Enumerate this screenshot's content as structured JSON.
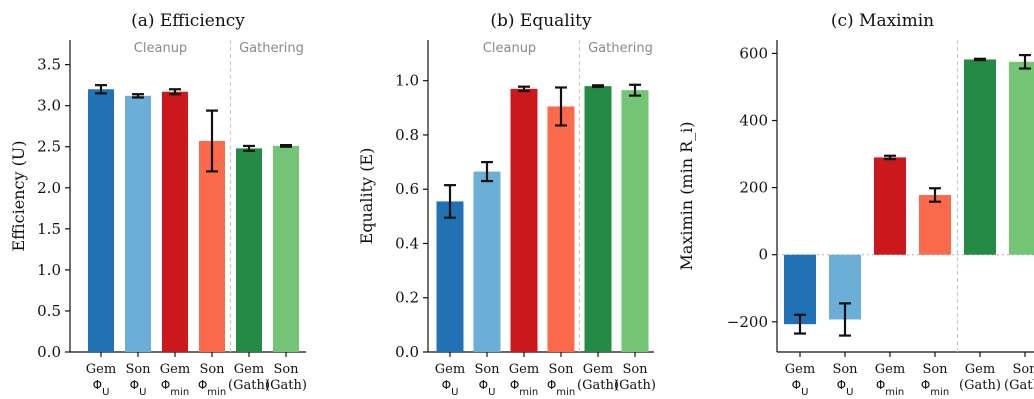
{
  "chart_data": [
    {
      "type": "bar",
      "title": "(a) Efficiency",
      "ylabel": "Efficiency (U)",
      "ylim": [
        0,
        3.8
      ],
      "yticks": [
        "0.0",
        "0.5",
        "1.0",
        "1.5",
        "2.0",
        "2.5",
        "3.0",
        "3.5"
      ],
      "group_labels": [
        "Cleanup",
        "Gathering"
      ],
      "categories": [
        {
          "top": "Gem",
          "sub": "Φ_U"
        },
        {
          "top": "Son",
          "sub": "Φ_U"
        },
        {
          "top": "Gem",
          "sub": "Φ_min"
        },
        {
          "top": "Son",
          "sub": "Φ_min"
        },
        {
          "top": "Gem",
          "sub": "(Gath)"
        },
        {
          "top": "Son",
          "sub": "(Gath)"
        }
      ],
      "values": [
        3.2,
        3.12,
        3.17,
        2.57,
        2.48,
        2.51
      ],
      "errors": [
        0.05,
        0.02,
        0.03,
        0.37,
        0.03,
        0.01
      ],
      "colors": [
        "#2171b5",
        "#6baed6",
        "#cb181d",
        "#fb6a4a",
        "#238b45",
        "#74c476"
      ]
    },
    {
      "type": "bar",
      "title": "(b) Equality",
      "ylabel": "Equality (E)",
      "ylim": [
        0,
        1.15
      ],
      "yticks": [
        "0.0",
        "0.2",
        "0.4",
        "0.6",
        "0.8",
        "1.0"
      ],
      "group_labels": [
        "Cleanup",
        "Gathering"
      ],
      "categories": [
        {
          "top": "Gem",
          "sub": "Φ_U"
        },
        {
          "top": "Son",
          "sub": "Φ_U"
        },
        {
          "top": "Gem",
          "sub": "Φ_min"
        },
        {
          "top": "Son",
          "sub": "Φ_min"
        },
        {
          "top": "Gem",
          "sub": "(Gath)"
        },
        {
          "top": "Son",
          "sub": "(Gath)"
        }
      ],
      "values": [
        0.555,
        0.665,
        0.97,
        0.905,
        0.98,
        0.965
      ],
      "errors": [
        0.06,
        0.035,
        0.008,
        0.07,
        0.003,
        0.02
      ],
      "colors": [
        "#2171b5",
        "#6baed6",
        "#cb181d",
        "#fb6a4a",
        "#238b45",
        "#74c476"
      ]
    },
    {
      "type": "bar",
      "title": "(c) Maximin",
      "ylabel": "Maximin (min R_i)",
      "ylim": [
        -290,
        640
      ],
      "yticks": [
        "−200",
        "0",
        "200",
        "400",
        "600"
      ],
      "categories": [
        {
          "top": "Gem",
          "sub": "Φ_U"
        },
        {
          "top": "Son",
          "sub": "Φ_U"
        },
        {
          "top": "Gem",
          "sub": "Φ_min"
        },
        {
          "top": "Son",
          "sub": "Φ_min"
        },
        {
          "top": "Gem",
          "sub": "(Gath)"
        },
        {
          "top": "Son",
          "sub": "(Gath)"
        }
      ],
      "values": [
        -207,
        -193,
        290,
        178,
        582,
        575
      ],
      "errors": [
        28,
        48,
        5,
        20,
        2,
        20
      ],
      "colors": [
        "#2171b5",
        "#6baed6",
        "#cb181d",
        "#fb6a4a",
        "#238b45",
        "#74c476"
      ]
    }
  ]
}
